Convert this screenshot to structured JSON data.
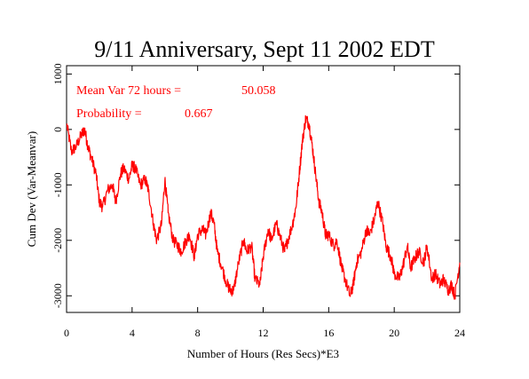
{
  "chart_data": {
    "type": "line",
    "title": "9/11 Anniversary, Sept 11 2002 EDT",
    "xlabel": "Number of Hours (Res Secs)*E3",
    "ylabel": "Cum Dev (Var-Meanvar)",
    "xlim": [
      0,
      24
    ],
    "ylim": [
      -3300,
      1150
    ],
    "x_ticks": [
      0,
      4,
      8,
      12,
      16,
      20,
      24
    ],
    "y_ticks": [
      -3000,
      -2000,
      -1000,
      0,
      1000
    ],
    "grid": false,
    "colors": {
      "line": "#ff0000",
      "axes": "#000000",
      "annotation": "#ff0000"
    },
    "annotations": [
      {
        "label": "Mean Var 72 hours =",
        "value": "50.058"
      },
      {
        "label": "Probability =",
        "value": "0.667"
      }
    ],
    "series": [
      {
        "x": [
          0,
          0.3,
          0.6,
          0.9,
          1.1,
          1.3,
          1.5,
          1.8,
          2.0,
          2.2,
          2.5,
          2.8,
          3.0,
          3.3,
          3.5,
          3.8,
          4.0,
          4.2,
          4.5,
          4.8,
          5.0,
          5.3,
          5.5,
          5.8,
          6.0,
          6.2,
          6.5,
          6.8,
          7.0,
          7.3,
          7.5,
          7.8,
          8.0,
          8.3,
          8.5,
          8.8,
          9.0,
          9.2,
          9.5,
          9.8,
          10.0,
          10.2,
          10.5,
          10.8,
          11.0,
          11.3,
          11.5,
          11.8,
          12.0,
          12.3,
          12.5,
          12.8,
          13.0,
          13.3,
          13.5,
          13.8,
          14.0,
          14.2,
          14.4,
          14.6,
          14.8,
          15.0,
          15.2,
          15.4,
          15.6,
          15.8,
          16.0,
          16.3,
          16.5,
          16.8,
          17.0,
          17.3,
          17.5,
          17.7,
          18.0,
          18.3,
          18.5,
          18.8,
          19.0,
          19.3,
          19.5,
          19.8,
          20.0,
          20.3,
          20.5,
          20.8,
          21.0,
          21.3,
          21.5,
          21.8,
          22.0,
          22.3,
          22.5,
          22.8,
          23.0,
          23.3,
          23.5,
          23.7,
          24.0
        ],
        "y": [
          100,
          -400,
          -300,
          -100,
          0,
          -300,
          -500,
          -800,
          -1300,
          -1400,
          -1100,
          -1000,
          -1300,
          -800,
          -700,
          -900,
          -650,
          -700,
          -1000,
          -900,
          -1100,
          -1700,
          -2000,
          -1700,
          -900,
          -1500,
          -2000,
          -2100,
          -2200,
          -2000,
          -1900,
          -2300,
          -1900,
          -1800,
          -1900,
          -1500,
          -1700,
          -2200,
          -2500,
          -2800,
          -2900,
          -2900,
          -2400,
          -2000,
          -2200,
          -2100,
          -2700,
          -2800,
          -2300,
          -1800,
          -2000,
          -1700,
          -1900,
          -2200,
          -2000,
          -1700,
          -1400,
          -800,
          -200,
          200,
          100,
          -300,
          -800,
          -1300,
          -1500,
          -1900,
          -1900,
          -2100,
          -2000,
          -2500,
          -2700,
          -3000,
          -2800,
          -2400,
          -2200,
          -1800,
          -1900,
          -1600,
          -1300,
          -1700,
          -2100,
          -2300,
          -2600,
          -2700,
          -2500,
          -2100,
          -2500,
          -2300,
          -2200,
          -2400,
          -2100,
          -2700,
          -2600,
          -2800,
          -2700,
          -2900,
          -2800,
          -3000,
          -2400
        ]
      }
    ]
  }
}
